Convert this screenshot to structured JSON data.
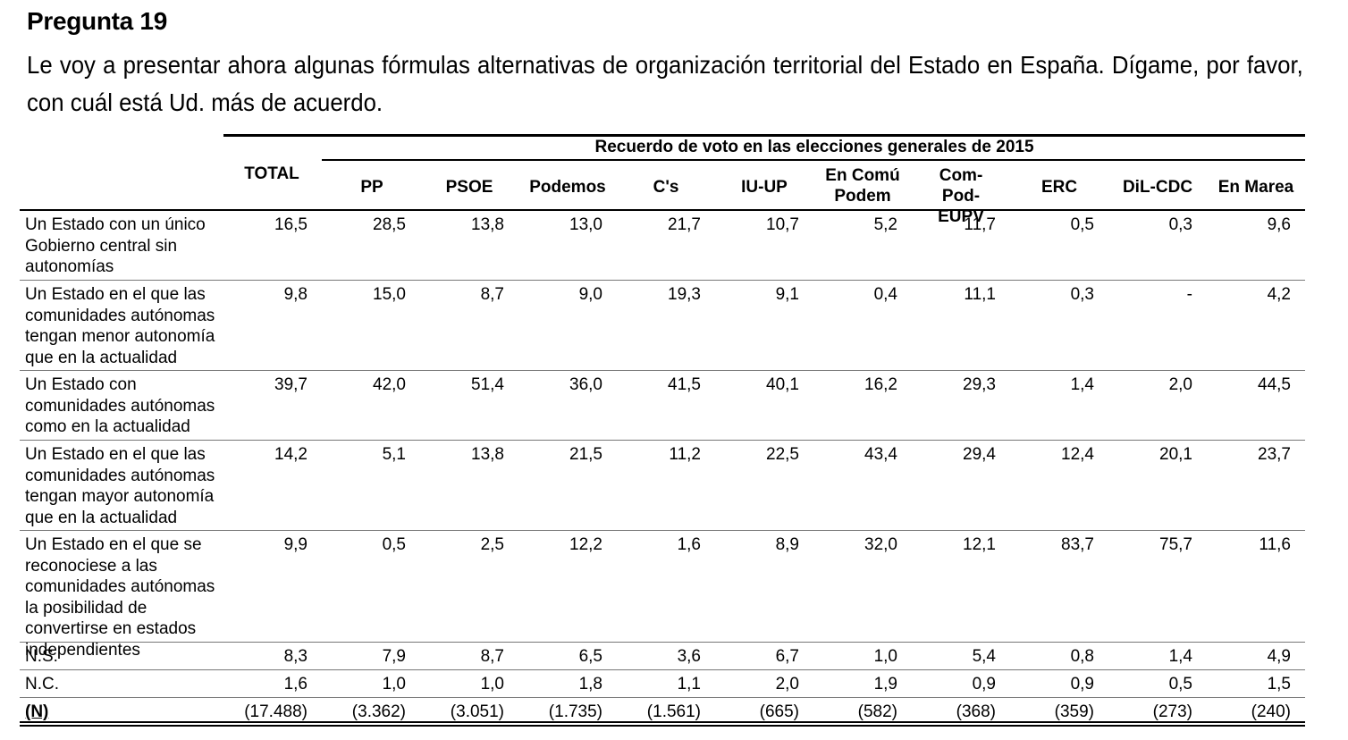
{
  "title": "Pregunta 19",
  "question": "Le voy a presentar ahora algunas fórmulas alternativas de organización territorial del Estado en España. Dígame, por favor, con cuál está Ud. más de acuerdo.",
  "table": {
    "group_header": "Recuerdo de voto en las elecciones generales de 2015",
    "total_header": "TOTAL",
    "columns": [
      "PP",
      "PSOE",
      "Podemos",
      "C's",
      "IU-UP",
      "En Comú Podem",
      "Com-Pod-EUPV",
      "ERC",
      "DiL-CDC",
      "En Marea"
    ],
    "rows": [
      {
        "label": "Un Estado con un único Gobierno central sin autonomías",
        "values": [
          "16,5",
          "28,5",
          "13,8",
          "13,0",
          "21,7",
          "10,7",
          "5,2",
          "11,7",
          "0,5",
          "0,3",
          "9,6"
        ]
      },
      {
        "label": "Un Estado en el que las comunidades autónomas tengan menor autonomía que en la actualidad",
        "values": [
          "9,8",
          "15,0",
          "8,7",
          "9,0",
          "19,3",
          "9,1",
          "0,4",
          "11,1",
          "0,3",
          "-",
          "4,2"
        ]
      },
      {
        "label": "Un Estado con comunidades autónomas como en la actualidad",
        "values": [
          "39,7",
          "42,0",
          "51,4",
          "36,0",
          "41,5",
          "40,1",
          "16,2",
          "29,3",
          "1,4",
          "2,0",
          "44,5"
        ]
      },
      {
        "label": "Un Estado en el que las comunidades autónomas tengan mayor autonomía que en la actualidad",
        "values": [
          "14,2",
          "5,1",
          "13,8",
          "21,5",
          "11,2",
          "22,5",
          "43,4",
          "29,4",
          "12,4",
          "20,1",
          "23,7"
        ]
      },
      {
        "label": "Un Estado en el que se reconociese a las comunidades autónomas la posibilidad de convertirse en estados independientes",
        "values": [
          "9,9",
          "0,5",
          "2,5",
          "12,2",
          "1,6",
          "8,9",
          "32,0",
          "12,1",
          "83,7",
          "75,7",
          "11,6"
        ]
      },
      {
        "label": "N.S.",
        "values": [
          "8,3",
          "7,9",
          "8,7",
          "6,5",
          "3,6",
          "6,7",
          "1,0",
          "5,4",
          "0,8",
          "1,4",
          "4,9"
        ]
      },
      {
        "label": "N.C.",
        "values": [
          "1,6",
          "1,0",
          "1,0",
          "1,8",
          "1,1",
          "2,0",
          "1,9",
          "0,9",
          "0,9",
          "0,5",
          "1,5"
        ]
      },
      {
        "label": "(N)",
        "values": [
          "(17.488)",
          "(3.362)",
          "(3.051)",
          "(1.735)",
          "(1.561)",
          "(665)",
          "(582)",
          "(368)",
          "(359)",
          "(273)",
          "(240)"
        ]
      }
    ]
  }
}
